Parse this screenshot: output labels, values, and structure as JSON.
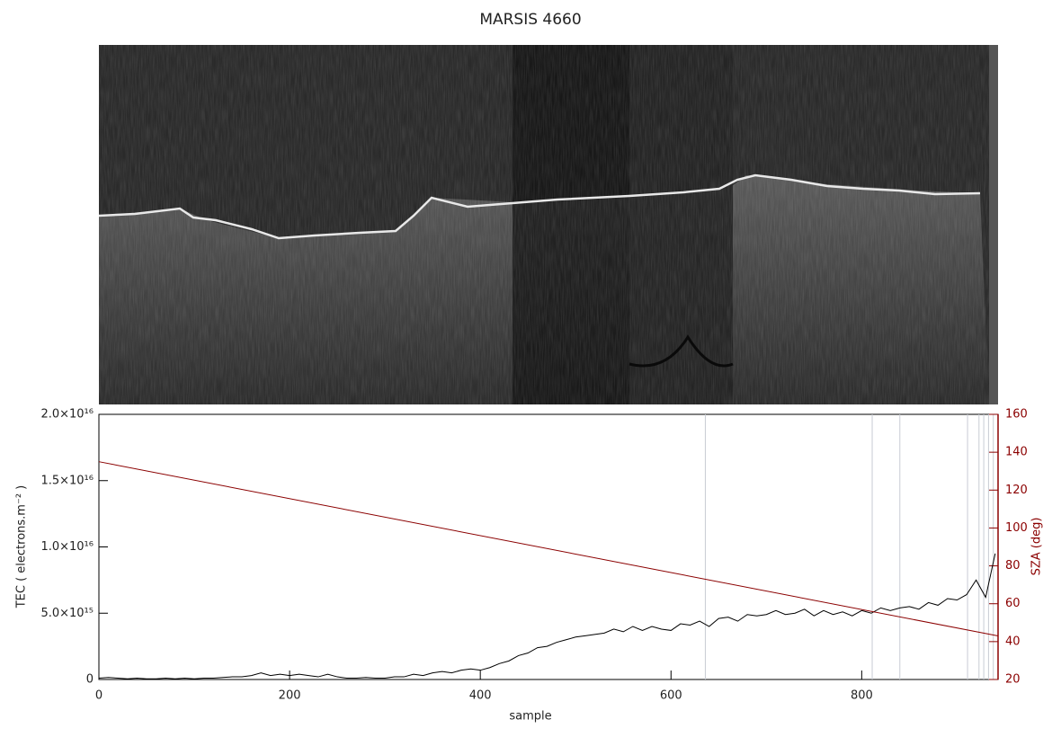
{
  "chart_data": {
    "type": "line",
    "title": "MARSIS 4660",
    "xlabel": "sample",
    "ylabel": "TEC ( electrons.m⁻² )",
    "y2label": "SZA (deg)",
    "xlim": [
      0,
      943
    ],
    "xticks": [
      0,
      200,
      400,
      600,
      800
    ],
    "ylim": [
      0,
      2e+16
    ],
    "yticks": [
      0,
      {
        "value": 5000000000000000.0,
        "label": "5.0×10¹⁵"
      },
      {
        "value": 1e+16,
        "label": "1.0×10¹⁶"
      },
      {
        "value": 1.5e+16,
        "label": "1.5×10¹⁶"
      },
      {
        "value": 2e+16,
        "label": "2.0×10¹⁶"
      }
    ],
    "y2lim": [
      20,
      160
    ],
    "y2ticks": [
      20,
      40,
      60,
      80,
      100,
      120,
      140,
      160
    ],
    "y2color": "#8b0000",
    "vlines": [
      636,
      811,
      840,
      911,
      923,
      928,
      933,
      938
    ],
    "vline_color": "#c8ccd4",
    "series": [
      {
        "color": "#000000",
        "x": [
          0,
          10,
          20,
          30,
          40,
          50,
          60,
          70,
          80,
          90,
          100,
          110,
          120,
          130,
          140,
          150,
          160,
          170,
          180,
          190,
          200,
          210,
          220,
          230,
          240,
          250,
          260,
          270,
          280,
          290,
          300,
          310,
          320,
          330,
          340,
          350,
          360,
          370,
          380,
          390,
          400,
          410,
          420,
          430,
          440,
          450,
          460,
          470,
          480,
          490,
          500,
          510,
          520,
          530,
          540,
          550,
          560,
          570,
          580,
          590,
          600,
          610,
          620,
          630,
          640,
          650,
          660,
          670,
          680,
          690,
          700,
          710,
          720,
          730,
          740,
          750,
          760,
          770,
          780,
          790,
          800,
          810,
          820,
          830,
          840,
          850,
          860,
          870,
          880,
          890,
          900,
          910,
          920,
          930,
          940
        ],
        "values": [
          100000000000000.0,
          150000000000000.0,
          100000000000000.0,
          50000000000000.0,
          100000000000000.0,
          50000000000000.0,
          50000000000000.0,
          100000000000000.0,
          50000000000000.0,
          100000000000000.0,
          50000000000000.0,
          100000000000000.0,
          100000000000000.0,
          150000000000000.0,
          200000000000000.0,
          200000000000000.0,
          300000000000000.0,
          500000000000000.0,
          300000000000000.0,
          400000000000000.0,
          300000000000000.0,
          400000000000000.0,
          300000000000000.0,
          200000000000000.0,
          400000000000000.0,
          200000000000000.0,
          100000000000000.0,
          100000000000000.0,
          150000000000000.0,
          100000000000000.0,
          100000000000000.0,
          200000000000000.0,
          200000000000000.0,
          400000000000000.0,
          300000000000000.0,
          500000000000000.0,
          600000000000000.0,
          500000000000000.0,
          700000000000000.0,
          800000000000000.0,
          700000000000000.0,
          900000000000000.0,
          1200000000000000.0,
          1400000000000000.0,
          1800000000000000.0,
          2000000000000000.0,
          2400000000000000.0,
          2500000000000000.0,
          2800000000000000.0,
          3000000000000000.0,
          3200000000000000.0,
          3300000000000000.0,
          3400000000000000.0,
          3500000000000000.0,
          3800000000000000.0,
          3600000000000000.0,
          4000000000000000.0,
          3700000000000000.0,
          4000000000000000.0,
          3800000000000000.0,
          3700000000000000.0,
          4200000000000000.0,
          4100000000000000.0,
          4400000000000000.0,
          4000000000000000.0,
          4600000000000000.0,
          4700000000000000.0,
          4400000000000000.0,
          4900000000000000.0,
          4800000000000000.0,
          4900000000000000.0,
          5200000000000000.0,
          4900000000000000.0,
          5000000000000000.0,
          5300000000000000.0,
          4800000000000000.0,
          5200000000000000.0,
          4900000000000000.0,
          5100000000000000.0,
          4800000000000000.0,
          5200000000000000.0,
          5000000000000000.0,
          5400000000000000.0,
          5200000000000000.0,
          5400000000000000.0,
          5500000000000000.0,
          5300000000000000.0,
          5800000000000000.0,
          5600000000000000.0,
          6100000000000000.0,
          6000000000000000.0,
          6400000000000000.0,
          7500000000000000.0,
          6200000000000000.0,
          9500000000000000.0
        ]
      },
      {
        "color": "#8b0000",
        "axis": "y2",
        "x": [
          0,
          943
        ],
        "values": [
          135,
          43
        ]
      }
    ]
  }
}
